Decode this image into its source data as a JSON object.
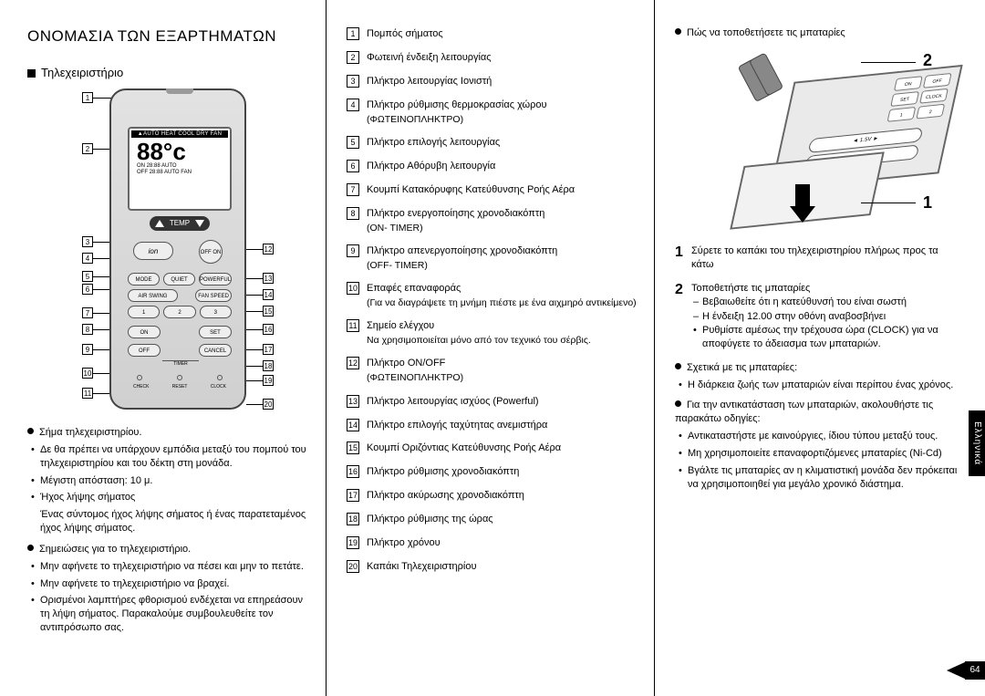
{
  "title": "ΟΝΟΜΑΣΙΑ ΤΩΝ ΕΞΑΡΤΗΜΑΤΩΝ",
  "subtitle": "Τηλεχειριστήριο",
  "remote": {
    "lcd_modes": "▲AUTO HEAT COOL DRY FAN",
    "lcd_temp": "88°c",
    "lcd_line1": "ON 28:88  AUTO",
    "lcd_line2": "OFF 28:88  AUTO FAN",
    "temp_label": "TEMP",
    "ion": "ion",
    "off": "OFF ON",
    "row_a": [
      "MODE",
      "QUIET",
      "POWERFUL"
    ],
    "row_b": [
      "AIR SWING",
      "",
      "FAN SPEED"
    ],
    "row_c": [
      "1",
      "2",
      "3"
    ],
    "row_d": [
      "ON",
      "",
      "SET"
    ],
    "row_e": [
      "OFF",
      "",
      "CANCEL"
    ],
    "timer": "TIMER",
    "reset_labels": [
      "CHECK",
      "RESET",
      "CLOCK"
    ]
  },
  "left_callouts": [
    "1",
    "2",
    "3",
    "4",
    "5",
    "6",
    "7",
    "8",
    "9",
    "10",
    "11"
  ],
  "right_callouts": [
    "12",
    "13",
    "14",
    "15",
    "16",
    "17",
    "18",
    "19",
    "20"
  ],
  "left_notes": {
    "h1": "Σήμα τηλεχειριστηρίου.",
    "b1": "Δε θα πρέπει να υπάρχουν εμπόδια μεταξύ του πομπού του τηλεχειριστηρίου και του δέκτη στη μονάδα.",
    "b2": "Μέγιστη απόσταση: 10 μ.",
    "b3": "Ήχος λήψης σήματος",
    "b3b": "Ένας σύντομος ήχος λήψης σήματος ή ένας παρατεταμένος ήχος λήψης σήματος.",
    "h2": "Σημειώσεις για το τηλεχειριστήριο.",
    "c1": "Μην αφήνετε το τηλεχειριστήριο να πέσει και μην το πετάτε.",
    "c2": "Μην αφήνετε το τηλεχειριστήριο να βραχεί.",
    "c3": "Ορισμένοι λαμπτήρες φθορισμού ενδέχεται να επηρεάσουν τη λήψη σήματος. Παρακαλούμε συμβουλευθείτε τον αντιπρόσωπο σας."
  },
  "legend": [
    {
      "n": "1",
      "t": "Πομπός σήματος"
    },
    {
      "n": "2",
      "t": "Φωτεινή ένδειξη λειτουργίας"
    },
    {
      "n": "3",
      "t": "Πλήκτρο λειτουργίας Ιονιστή"
    },
    {
      "n": "4",
      "t": "Πλήκτρο ρύθμισης θερμοκρασίας χώρου",
      "s": "(ΦΩΤΕΙΝΟΠΛΗΚΤΡΟ)"
    },
    {
      "n": "5",
      "t": "Πλήκτρο επιλογής λειτουργίας"
    },
    {
      "n": "6",
      "t": "Πλήκτρο Αθόρυβη λειτουργία"
    },
    {
      "n": "7",
      "t": "Κουμπί Κατακόρυφης Κατεύθυνσης Ροής Αέρα"
    },
    {
      "n": "8",
      "t": "Πλήκτρο ενεργοποίησης χρονοδιακόπτη",
      "s": "(ON- TIMER)"
    },
    {
      "n": "9",
      "t": "Πλήκτρο απενεργοποίησης χρονοδιακόπτη",
      "s": "(OFF- TIMER)"
    },
    {
      "n": "10",
      "t": "Επαφές επαναφοράς",
      "s": "(Για να διαγράψετε τη μνήμη πιέστε με ένα αιχμηρό αντικείμενο)"
    },
    {
      "n": "11",
      "t": "Σημείο ελέγχου",
      "s": "Να χρησιμοποιείται μόνο από τον τεχνικό του σέρβις."
    },
    {
      "n": "12",
      "t": "Πλήκτρο ON/OFF",
      "s": "(ΦΩΤΕΙΝΟΠΛΗΚΤΡΟ)"
    },
    {
      "n": "13",
      "t": "Πλήκτρο λειτουργίας ισχύος (Powerful)"
    },
    {
      "n": "14",
      "t": "Πλήκτρο επιλογής ταχύτητας ανεμιστήρα"
    },
    {
      "n": "15",
      "t": "Κουμπί Οριζόντιας Κατεύθυνσης Ροής Αέρα"
    },
    {
      "n": "16",
      "t": "Πλήκτρο ρύθμισης χρονοδιακόπτη"
    },
    {
      "n": "17",
      "t": "Πλήκτρο ακύρωσης χρονοδιακόπτη"
    },
    {
      "n": "18",
      "t": "Πλήκτρο ρύθμισης της ώρας"
    },
    {
      "n": "19",
      "t": "Πλήκτρο χρόνου"
    },
    {
      "n": "20",
      "t": "Καπάκι Τηλεχειριστηρίου"
    }
  ],
  "right": {
    "heading": "Πώς να τοποθετήσετε τις μπαταρίες",
    "panel_btns": [
      "ON",
      "OFF",
      "SET",
      "CLOCK",
      "1",
      "2"
    ],
    "slot": [
      "◄ 1.5V ►",
      "◄ 1.5V ►"
    ],
    "n1": "1",
    "n2": "2",
    "step1": "Σύρετε το καπάκι του τηλεχειριστηρίου πλήρως προς τα κάτω",
    "step2": "Τοποθετήστε τις μπαταρίες",
    "s2a": "Βεβαιωθείτε ότι η κατεύθυνσή του είναι σωστή",
    "s2b": "Η ένδειξη 12.00 στην οθόνη αναβοσβήνει",
    "s2c": "Ρυθμίστε αμέσως την τρέχουσα ώρα (CLOCK) για να αποφύγετε το άδειασμα των μπαταριών.",
    "h3": "Σχετικά με τις μπαταρίες:",
    "h3a": "Η διάρκεια ζωής των μπαταριών είναι περίπου ένας χρόνος.",
    "h4": "Για την αντικατάσταση των μπαταριών, ακολουθήστε τις παρακάτω οδηγίες:",
    "h4a": "Αντικαταστήστε με καινούργιες, ίδιου τύπου μεταξύ τους.",
    "h4b": "Μη χρησιμοποιείτε επαναφορτιζόμενες μπαταρίες (Ni-Cd)",
    "h4c": "Βγάλτε τις μπαταρίες αν η κλιματιστική μονάδα δεν πρόκειται να χρησιμοποιηθεί για μεγάλο χρονικό διάστημα."
  },
  "language_tab": "Ελληνικά",
  "page_number": "64"
}
